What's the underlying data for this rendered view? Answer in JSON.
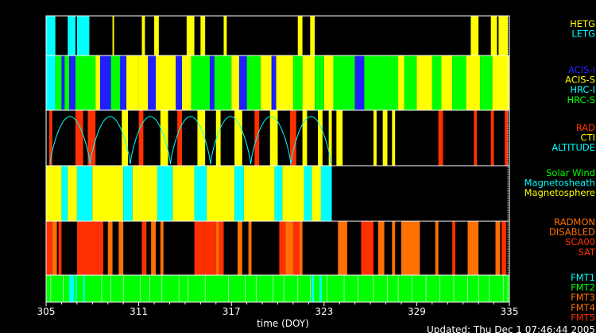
{
  "chart_data": {
    "type": "timeline",
    "x_axis": {
      "label": "time (DOY)",
      "range": [
        305,
        335
      ],
      "ticks": [
        305,
        311,
        317,
        323,
        329,
        335
      ]
    },
    "updated_text": "Updated: Thu Dec  1 07:46:44 2005",
    "panels": [
      {
        "name": "grating",
        "legend": [
          {
            "label": "HETG",
            "color": "#ffff00"
          },
          {
            "label": "LETG",
            "color": "#00ffff"
          }
        ],
        "intervals": [
          {
            "start": 305.0,
            "end": 305.6,
            "color": "#00ffff"
          },
          {
            "start": 306.4,
            "end": 306.9,
            "color": "#00ffff"
          },
          {
            "start": 307.0,
            "end": 307.8,
            "color": "#00ffff"
          },
          {
            "start": 309.3,
            "end": 309.4,
            "color": "#ffff00"
          },
          {
            "start": 311.2,
            "end": 311.4,
            "color": "#ffff00"
          },
          {
            "start": 312.0,
            "end": 312.3,
            "color": "#ffff00"
          },
          {
            "start": 314.1,
            "end": 314.6,
            "color": "#ffff00"
          },
          {
            "start": 315.0,
            "end": 315.3,
            "color": "#ffff00"
          },
          {
            "start": 316.5,
            "end": 316.7,
            "color": "#ffff00"
          },
          {
            "start": 321.3,
            "end": 321.6,
            "color": "#ffff00"
          },
          {
            "start": 322.1,
            "end": 322.4,
            "color": "#ffff00"
          },
          {
            "start": 332.5,
            "end": 333.0,
            "color": "#ffff00"
          },
          {
            "start": 333.8,
            "end": 334.2,
            "color": "#ffff00"
          },
          {
            "start": 334.3,
            "end": 334.9,
            "color": "#ffff00"
          }
        ]
      },
      {
        "name": "instrument",
        "legend": [
          {
            "label": "ACIS-I",
            "color": "#2020ff"
          },
          {
            "label": "ACIS-S",
            "color": "#ffff00"
          },
          {
            "label": "HRC-I",
            "color": "#00ffff"
          },
          {
            "label": "HRC-S",
            "color": "#00ff00"
          }
        ],
        "intervals": [
          {
            "start": 305.0,
            "end": 305.6,
            "color": "#00ffff"
          },
          {
            "start": 305.6,
            "end": 306.0,
            "color": "#00ff00"
          },
          {
            "start": 306.0,
            "end": 306.2,
            "color": "#2020ff"
          },
          {
            "start": 306.2,
            "end": 306.5,
            "color": "#00ff00"
          },
          {
            "start": 306.5,
            "end": 306.9,
            "color": "#2020ff"
          },
          {
            "start": 306.9,
            "end": 308.2,
            "color": "#00ff00"
          },
          {
            "start": 308.2,
            "end": 308.5,
            "color": "#ffff00"
          },
          {
            "start": 308.5,
            "end": 309.2,
            "color": "#2020ff"
          },
          {
            "start": 309.2,
            "end": 309.8,
            "color": "#00ff00"
          },
          {
            "start": 309.8,
            "end": 310.2,
            "color": "#2020ff"
          },
          {
            "start": 310.2,
            "end": 311.0,
            "color": "#ffff00"
          },
          {
            "start": 311.0,
            "end": 311.6,
            "color": "#ffff00"
          },
          {
            "start": 311.6,
            "end": 312.1,
            "color": "#2020ff"
          },
          {
            "start": 312.1,
            "end": 313.4,
            "color": "#ffff00"
          },
          {
            "start": 313.4,
            "end": 313.8,
            "color": "#2020ff"
          },
          {
            "start": 313.8,
            "end": 314.4,
            "color": "#ffff00"
          },
          {
            "start": 314.4,
            "end": 315.6,
            "color": "#00ff00"
          },
          {
            "start": 315.6,
            "end": 315.9,
            "color": "#2020ff"
          },
          {
            "start": 315.9,
            "end": 317.0,
            "color": "#00ff00"
          },
          {
            "start": 317.0,
            "end": 317.5,
            "color": "#ffff00"
          },
          {
            "start": 317.5,
            "end": 318.0,
            "color": "#2020ff"
          },
          {
            "start": 318.0,
            "end": 318.9,
            "color": "#00ff00"
          },
          {
            "start": 318.9,
            "end": 319.6,
            "color": "#ffff00"
          },
          {
            "start": 319.6,
            "end": 319.9,
            "color": "#2020ff"
          },
          {
            "start": 319.9,
            "end": 321.0,
            "color": "#ffff00"
          },
          {
            "start": 321.0,
            "end": 321.6,
            "color": "#00ff00"
          },
          {
            "start": 321.6,
            "end": 322.4,
            "color": "#ffff00"
          },
          {
            "start": 322.4,
            "end": 323.0,
            "color": "#00ff00"
          },
          {
            "start": 323.0,
            "end": 323.6,
            "color": "#ffff00"
          },
          {
            "start": 323.6,
            "end": 325.0,
            "color": "#00ff00"
          },
          {
            "start": 325.0,
            "end": 325.6,
            "color": "#2020ff"
          },
          {
            "start": 325.6,
            "end": 327.8,
            "color": "#00ff00"
          },
          {
            "start": 327.8,
            "end": 328.2,
            "color": "#ffff00"
          },
          {
            "start": 328.2,
            "end": 329.0,
            "color": "#00ff00"
          },
          {
            "start": 329.0,
            "end": 330.0,
            "color": "#ffff00"
          },
          {
            "start": 330.0,
            "end": 330.6,
            "color": "#00ff00"
          },
          {
            "start": 330.6,
            "end": 331.3,
            "color": "#ffff00"
          },
          {
            "start": 331.3,
            "end": 332.2,
            "color": "#00ff00"
          },
          {
            "start": 332.2,
            "end": 333.1,
            "color": "#ffff00"
          },
          {
            "start": 333.1,
            "end": 333.9,
            "color": "#00ff00"
          },
          {
            "start": 333.9,
            "end": 335.0,
            "color": "#ffff00"
          }
        ]
      },
      {
        "name": "radiation",
        "legend": [
          {
            "label": "RAD",
            "color": "#ff3000"
          },
          {
            "label": "CTI",
            "color": "#ffff00"
          },
          {
            "label": "ALTITUDE",
            "color": "#00ffff"
          }
        ],
        "intervals": [
          {
            "start": 305.2,
            "end": 305.4,
            "color": "#ff3000"
          },
          {
            "start": 306.9,
            "end": 307.4,
            "color": "#ff3000"
          },
          {
            "start": 307.7,
            "end": 308.2,
            "color": "#ff3000"
          },
          {
            "start": 309.9,
            "end": 310.3,
            "color": "#ffff00"
          },
          {
            "start": 311.0,
            "end": 311.3,
            "color": "#ff3000"
          },
          {
            "start": 312.4,
            "end": 312.9,
            "color": "#ffff00"
          },
          {
            "start": 313.5,
            "end": 313.8,
            "color": "#ff3000"
          },
          {
            "start": 314.8,
            "end": 315.3,
            "color": "#ffff00"
          },
          {
            "start": 316.0,
            "end": 316.3,
            "color": "#ffff00"
          },
          {
            "start": 317.2,
            "end": 317.7,
            "color": "#ffff00"
          },
          {
            "start": 318.5,
            "end": 318.8,
            "color": "#ff3000"
          },
          {
            "start": 319.5,
            "end": 320.0,
            "color": "#ffff00"
          },
          {
            "start": 320.8,
            "end": 321.2,
            "color": "#ff3000"
          },
          {
            "start": 321.6,
            "end": 321.9,
            "color": "#ffff00"
          },
          {
            "start": 322.6,
            "end": 322.9,
            "color": "#ffff00"
          },
          {
            "start": 323.3,
            "end": 323.5,
            "color": "#ffff00"
          },
          {
            "start": 323.8,
            "end": 324.2,
            "color": "#ffff00"
          },
          {
            "start": 326.2,
            "end": 326.4,
            "color": "#ffff00"
          },
          {
            "start": 326.8,
            "end": 327.1,
            "color": "#ffff00"
          },
          {
            "start": 327.4,
            "end": 327.6,
            "color": "#ffff00"
          },
          {
            "start": 330.4,
            "end": 330.7,
            "color": "#ff3000"
          },
          {
            "start": 332.7,
            "end": 332.9,
            "color": "#ff3000"
          },
          {
            "start": 333.8,
            "end": 334.0,
            "color": "#ff3000"
          },
          {
            "start": 334.7,
            "end": 334.9,
            "color": "#ff3000"
          }
        ],
        "altitude_curve": {
          "color": "#00ffff",
          "perigees": [
            305.25,
            307.85,
            310.45,
            313.05,
            315.65,
            318.25,
            320.85,
            323.45
          ]
        }
      },
      {
        "name": "environment",
        "legend": [
          {
            "label": "Solar Wind",
            "color": "#00ff00"
          },
          {
            "label": "Magnetosheath",
            "color": "#00ffff"
          },
          {
            "label": "Magnetosphere",
            "color": "#ffff00"
          }
        ],
        "intervals": [
          {
            "start": 305.0,
            "end": 306.0,
            "color": "#ffff00"
          },
          {
            "start": 306.0,
            "end": 306.4,
            "color": "#00ffff"
          },
          {
            "start": 306.4,
            "end": 307.0,
            "color": "#ffff00"
          },
          {
            "start": 307.0,
            "end": 308.0,
            "color": "#00ffff"
          },
          {
            "start": 308.0,
            "end": 310.0,
            "color": "#ffff00"
          },
          {
            "start": 310.0,
            "end": 310.6,
            "color": "#00ffff"
          },
          {
            "start": 310.6,
            "end": 312.2,
            "color": "#ffff00"
          },
          {
            "start": 312.2,
            "end": 313.2,
            "color": "#00ffff"
          },
          {
            "start": 313.2,
            "end": 314.6,
            "color": "#ffff00"
          },
          {
            "start": 314.6,
            "end": 315.4,
            "color": "#00ffff"
          },
          {
            "start": 315.4,
            "end": 317.2,
            "color": "#ffff00"
          },
          {
            "start": 317.2,
            "end": 317.8,
            "color": "#00ffff"
          },
          {
            "start": 317.8,
            "end": 319.8,
            "color": "#ffff00"
          },
          {
            "start": 319.8,
            "end": 320.3,
            "color": "#00ffff"
          },
          {
            "start": 320.3,
            "end": 321.7,
            "color": "#ffff00"
          },
          {
            "start": 321.7,
            "end": 322.2,
            "color": "#00ffff"
          },
          {
            "start": 322.2,
            "end": 322.8,
            "color": "#ffff00"
          },
          {
            "start": 322.8,
            "end": 323.5,
            "color": "#00ffff"
          }
        ]
      },
      {
        "name": "radmon",
        "legend": [
          {
            "label": "RADMON",
            "color": "#ff7000"
          },
          {
            "label": "DISABLED",
            "color": "#ff7000"
          },
          {
            "label": "SCA00",
            "color": "#ff3000"
          },
          {
            "label": "SAT",
            "color": "#ff3000"
          }
        ],
        "intervals": [
          {
            "start": 305.0,
            "end": 305.4,
            "color": "#ff3000"
          },
          {
            "start": 305.4,
            "end": 305.7,
            "color": "#ff7000"
          },
          {
            "start": 305.8,
            "end": 306.0,
            "color": "#ff3000"
          },
          {
            "start": 307.0,
            "end": 308.7,
            "color": "#ff3000"
          },
          {
            "start": 309.0,
            "end": 309.3,
            "color": "#ff7000"
          },
          {
            "start": 309.7,
            "end": 310.0,
            "color": "#ff7000"
          },
          {
            "start": 311.2,
            "end": 311.5,
            "color": "#ff3000"
          },
          {
            "start": 311.8,
            "end": 312.1,
            "color": "#ff7000"
          },
          {
            "start": 312.4,
            "end": 312.6,
            "color": "#ff7000"
          },
          {
            "start": 314.6,
            "end": 315.2,
            "color": "#ff3000"
          },
          {
            "start": 315.2,
            "end": 316.0,
            "color": "#ff3000"
          },
          {
            "start": 316.0,
            "end": 316.2,
            "color": "#ff7000"
          },
          {
            "start": 316.2,
            "end": 316.5,
            "color": "#ff3000"
          },
          {
            "start": 317.4,
            "end": 317.7,
            "color": "#ff7000"
          },
          {
            "start": 318.1,
            "end": 318.3,
            "color": "#ff7000"
          },
          {
            "start": 320.1,
            "end": 320.5,
            "color": "#ff3000"
          },
          {
            "start": 320.5,
            "end": 321.0,
            "color": "#ff7000"
          },
          {
            "start": 321.0,
            "end": 321.4,
            "color": "#ff3000"
          },
          {
            "start": 321.4,
            "end": 321.6,
            "color": "#ff7000"
          },
          {
            "start": 323.9,
            "end": 324.5,
            "color": "#ff7000"
          },
          {
            "start": 325.4,
            "end": 326.2,
            "color": "#ff3000"
          },
          {
            "start": 326.5,
            "end": 326.9,
            "color": "#ff7000"
          },
          {
            "start": 327.4,
            "end": 327.6,
            "color": "#ff7000"
          },
          {
            "start": 328.0,
            "end": 329.2,
            "color": "#ff7000"
          },
          {
            "start": 330.2,
            "end": 330.4,
            "color": "#ff7000"
          },
          {
            "start": 331.3,
            "end": 331.5,
            "color": "#ff3000"
          },
          {
            "start": 332.3,
            "end": 333.0,
            "color": "#ff7000"
          },
          {
            "start": 334.1,
            "end": 334.4,
            "color": "#ff7000"
          },
          {
            "start": 334.5,
            "end": 334.8,
            "color": "#ff3000"
          }
        ]
      },
      {
        "name": "format",
        "legend": [
          {
            "label": "FMT1",
            "color": "#00ffff"
          },
          {
            "label": "FMT2",
            "color": "#00ff00"
          },
          {
            "label": "FMT3",
            "color": "#ff7000"
          },
          {
            "label": "FMT4",
            "color": "#ff7000"
          },
          {
            "label": "FMT5",
            "color": "#ff3000"
          }
        ],
        "intervals": [
          {
            "start": 305.0,
            "end": 335.0,
            "color": "#00ff00"
          },
          {
            "start": 306.5,
            "end": 306.8,
            "color": "#00ffff"
          },
          {
            "start": 306.9,
            "end": 307.0,
            "color": "#00ffff"
          },
          {
            "start": 307.4,
            "end": 307.5,
            "color": "#00ffff"
          },
          {
            "start": 322.2,
            "end": 322.35,
            "color": "#00ffff"
          },
          {
            "start": 322.7,
            "end": 322.85,
            "color": "#00ffff"
          }
        ],
        "markers": [
          305.3,
          306.1,
          308.6,
          309.2,
          310.0,
          311.1,
          311.7,
          312.5,
          313.6,
          314.2,
          315.3,
          316.8,
          317.9,
          318.6,
          319.7,
          320.4,
          321.3,
          322.1,
          323.2,
          324.3,
          325.2,
          326.2,
          327.1,
          327.8,
          328.7,
          329.6,
          330.5,
          331.4,
          332.3,
          333.0,
          333.7,
          334.6
        ]
      }
    ]
  }
}
